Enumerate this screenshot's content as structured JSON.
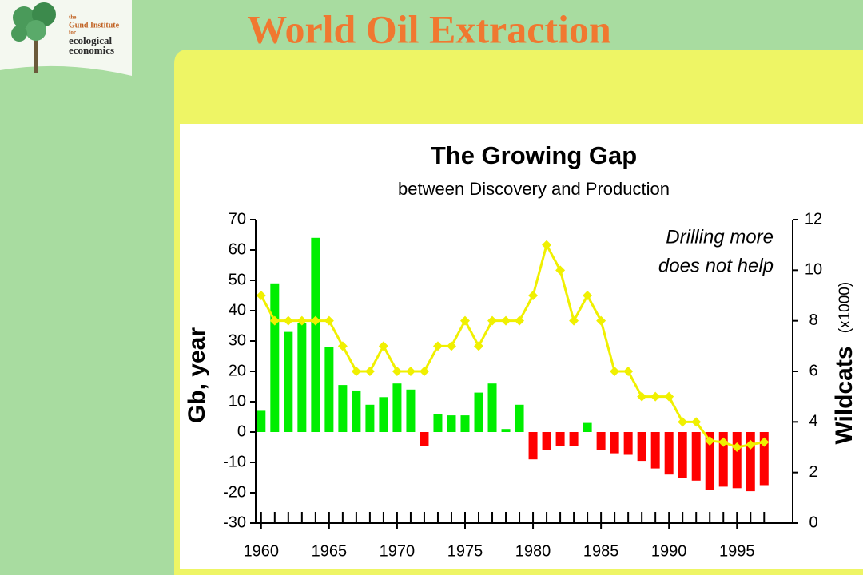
{
  "slide": {
    "title": "World Oil Extraction"
  },
  "logo": {
    "lines": [
      "the",
      "Gund Institute",
      "for",
      "ecological",
      "economics"
    ]
  },
  "chart_data": {
    "type": "bar-line",
    "title": "The Growing Gap",
    "subtitle": "between Discovery and Production",
    "ylabel": "Gb, year",
    "y2label": "Wildcats",
    "y2label_unit": "(x1000)",
    "annotation": [
      "Drilling more",
      "does not help"
    ],
    "x": [
      1960,
      1961,
      1962,
      1963,
      1964,
      1965,
      1966,
      1967,
      1968,
      1969,
      1970,
      1971,
      1972,
      1973,
      1974,
      1975,
      1976,
      1977,
      1978,
      1979,
      1980,
      1981,
      1982,
      1983,
      1984,
      1985,
      1986,
      1987,
      1988,
      1989,
      1990,
      1991,
      1992,
      1993,
      1994,
      1995,
      1996,
      1997
    ],
    "xlim": [
      1959.6,
      1999.1
    ],
    "xticks": [
      1960,
      1965,
      1970,
      1975,
      1980,
      1985,
      1990,
      1995
    ],
    "ylim": [
      -30,
      70
    ],
    "yticks": [
      -30,
      -20,
      -10,
      0,
      10,
      20,
      30,
      40,
      50,
      60,
      70
    ],
    "y2lim": [
      0,
      12
    ],
    "y2ticks": [
      0,
      2,
      4,
      6,
      8,
      10,
      12
    ],
    "series": [
      {
        "type": "bar",
        "colors": {
          "positive": "#00ee00",
          "negative": "#ff0000"
        },
        "values": [
          7,
          49,
          33,
          36,
          64,
          28,
          15.5,
          13.7,
          9,
          11.5,
          16,
          14,
          -4.5,
          6,
          5.5,
          5.5,
          13,
          16,
          1,
          9,
          -9,
          -6,
          -4.5,
          -4.5,
          3,
          -6,
          -7,
          -7.5,
          -9.5,
          -12,
          -14,
          -15,
          -16,
          -19,
          -18,
          -18.5,
          -19.5,
          -17.5
        ]
      },
      {
        "type": "line",
        "axis": "y2",
        "color": "#f0f000",
        "values": [
          9,
          8,
          8,
          8,
          8,
          8,
          7,
          6,
          6,
          7,
          6,
          6,
          6,
          7,
          7,
          8,
          7,
          8,
          8,
          8,
          9,
          11,
          10,
          8,
          9,
          8,
          6,
          6,
          5,
          5,
          5,
          4,
          4,
          3.25,
          3.2,
          3,
          3.1,
          3.2
        ]
      }
    ]
  }
}
